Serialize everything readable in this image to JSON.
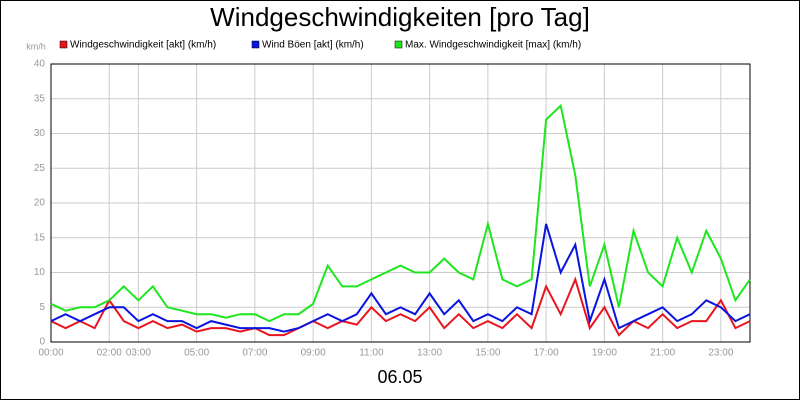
{
  "chart_data": {
    "type": "line",
    "title": "Windgeschwindigkeiten [pro Tag]",
    "y_unit": "km/h",
    "x_label": "06.05",
    "x": [
      0,
      0.5,
      1,
      1.5,
      2,
      2.5,
      3,
      3.5,
      4,
      4.5,
      5,
      5.5,
      6,
      6.5,
      7,
      7.5,
      8,
      8.5,
      9,
      9.5,
      10,
      10.5,
      11,
      11.5,
      12,
      12.5,
      13,
      13.5,
      14,
      14.5,
      15,
      15.5,
      16,
      16.5,
      17,
      17.5,
      18,
      18.5,
      19,
      19.5,
      20,
      20.5,
      21,
      21.5,
      22,
      22.5,
      23,
      23.5,
      24
    ],
    "series": [
      {
        "name": "Windgeschwindigkeit [akt] (km/h)",
        "color": "#e8141e",
        "values": [
          3,
          2,
          3,
          2,
          6,
          3,
          2,
          3,
          2,
          2.5,
          1.5,
          2,
          2,
          1.5,
          2,
          1,
          1,
          2,
          3,
          2,
          3,
          2.5,
          5,
          3,
          4,
          3,
          5,
          2,
          4,
          2,
          3,
          2,
          4,
          2,
          8,
          4,
          9,
          2,
          5,
          1,
          3,
          2,
          4,
          2,
          3,
          3,
          6,
          2,
          3
        ]
      },
      {
        "name": "Wind Böen [akt] (km/h)",
        "color": "#0a14e0",
        "values": [
          3,
          4,
          3,
          4,
          5,
          5,
          3,
          4,
          3,
          3,
          2,
          3,
          2.5,
          2,
          2,
          2,
          1.5,
          2,
          3,
          4,
          3,
          4,
          7,
          4,
          5,
          4,
          7,
          4,
          6,
          3,
          4,
          3,
          5,
          4,
          17,
          10,
          14,
          3,
          9,
          2,
          3,
          4,
          5,
          3,
          4,
          6,
          5,
          3,
          4
        ]
      },
      {
        "name": "Max. Windgeschwindigkeit [max] (km/h)",
        "color": "#1ee61e",
        "values": [
          5.5,
          4.5,
          5,
          5,
          6,
          8,
          6,
          8,
          5,
          4.5,
          4,
          4,
          3.5,
          4,
          4,
          3,
          4,
          4,
          5.5,
          11,
          8,
          8,
          9,
          10,
          11,
          10,
          10,
          12,
          10,
          9,
          17,
          9,
          8,
          9,
          32,
          34,
          24,
          8,
          14,
          5,
          16,
          10,
          8,
          15,
          10,
          16,
          12,
          6,
          9
        ]
      }
    ],
    "xlim": [
      0,
      24
    ],
    "xticks": [
      {
        "value": 0,
        "label": "00:00"
      },
      {
        "value": 2,
        "label": "02:00"
      },
      {
        "value": 3,
        "label": "03:00"
      },
      {
        "value": 5,
        "label": "05:00"
      },
      {
        "value": 7,
        "label": "07:00"
      },
      {
        "value": 9,
        "label": "09:00"
      },
      {
        "value": 11,
        "label": "11:00"
      },
      {
        "value": 13,
        "label": "13:00"
      },
      {
        "value": 15,
        "label": "15:00"
      },
      {
        "value": 17,
        "label": "17:00"
      },
      {
        "value": 19,
        "label": "19:00"
      },
      {
        "value": 21,
        "label": "21:00"
      },
      {
        "value": 23,
        "label": "23:00"
      }
    ],
    "ylim": [
      0,
      40
    ],
    "yticks": [
      0,
      5,
      10,
      15,
      20,
      25,
      30,
      35,
      40
    ],
    "grid": true
  }
}
